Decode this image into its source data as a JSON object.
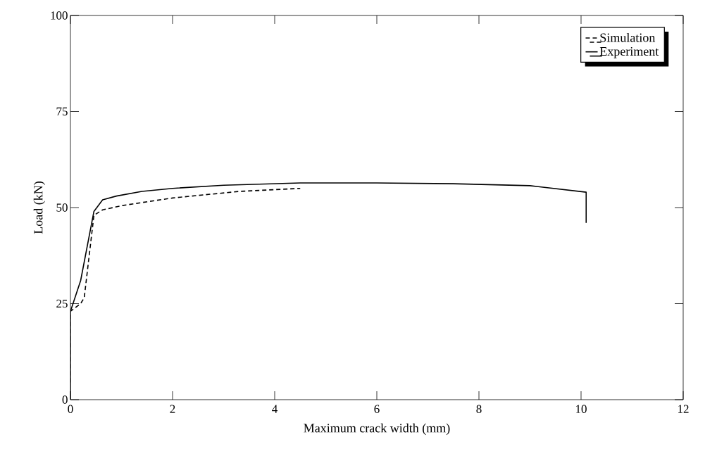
{
  "chart_data": {
    "type": "line",
    "xlabel": "Maximum crack width (mm)",
    "ylabel": "Load (kN)",
    "xlim": [
      0,
      12
    ],
    "ylim": [
      0,
      100
    ],
    "xticks": [
      0,
      2,
      4,
      6,
      8,
      10,
      12
    ],
    "yticks": [
      0,
      25,
      50,
      75,
      100
    ],
    "grid": false,
    "legend": "top right",
    "marker": "none",
    "series": [
      {
        "name": "Simulation",
        "color": "#000000",
        "line_style": "dashed",
        "x": [
          0,
          0,
          0.2,
          0.27,
          0.46,
          0.63,
          1,
          2,
          3.3,
          4.5
        ],
        "values": [
          4.5,
          23,
          25,
          26.5,
          48,
          49.4,
          50.5,
          52.5,
          54.2,
          55
        ]
      },
      {
        "name": "Experiment",
        "color": "#000000",
        "line_style": "solid",
        "x": [
          0,
          0,
          0.2,
          0.46,
          0.63,
          0.9,
          1.4,
          2,
          3,
          4.5,
          6,
          7.5,
          9,
          10.1,
          10.1
        ],
        "values": [
          0,
          23,
          31,
          49,
          52,
          53,
          54.2,
          55,
          55.8,
          56.4,
          56.4,
          56.2,
          55.7,
          54,
          46
        ]
      }
    ]
  }
}
